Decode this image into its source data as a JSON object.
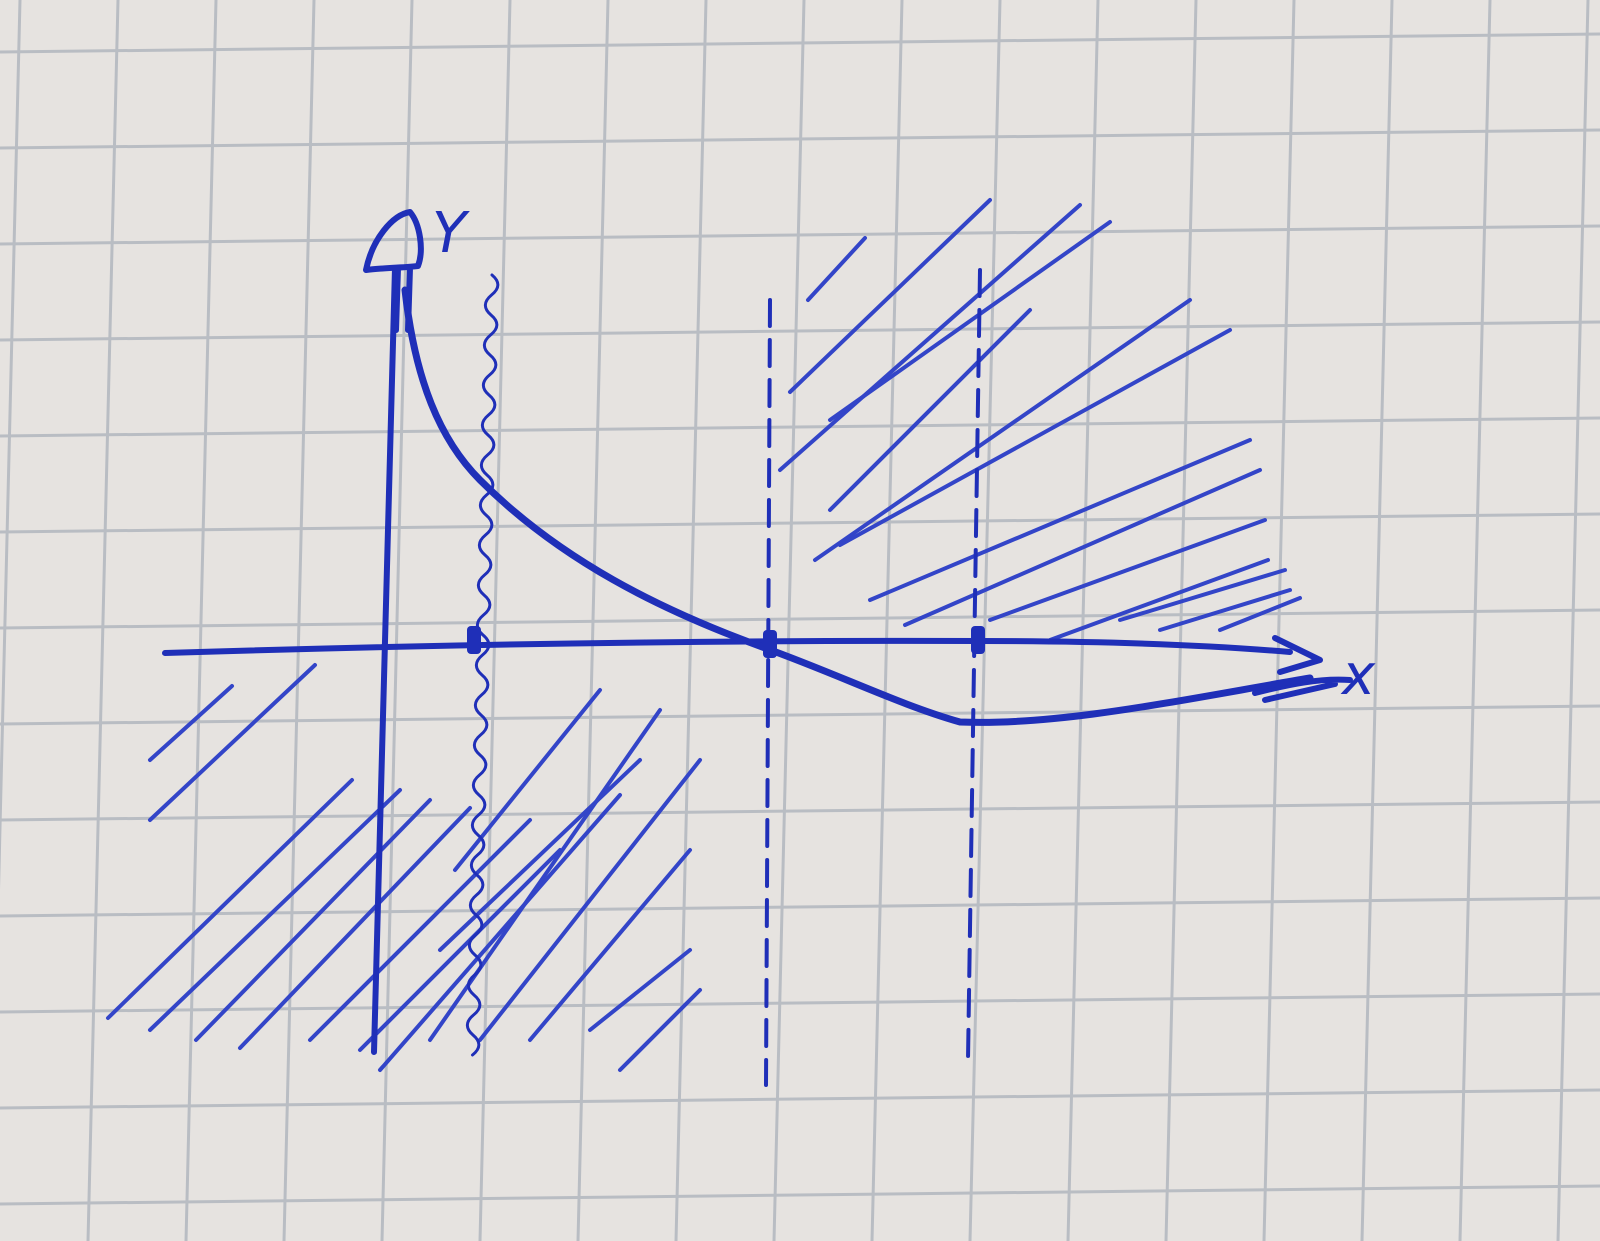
{
  "colors": {
    "paper": "#e6e3e0",
    "grid": "#b9bdc3",
    "ink": "#1f2fb8",
    "hatch": "#3345c8"
  },
  "sketch": {
    "y_axis_label": "Y",
    "x_axis_label": "x",
    "marked_points_on_x_axis": 3,
    "y_axis_arrow": "up",
    "x_axis_arrow": "right"
  }
}
